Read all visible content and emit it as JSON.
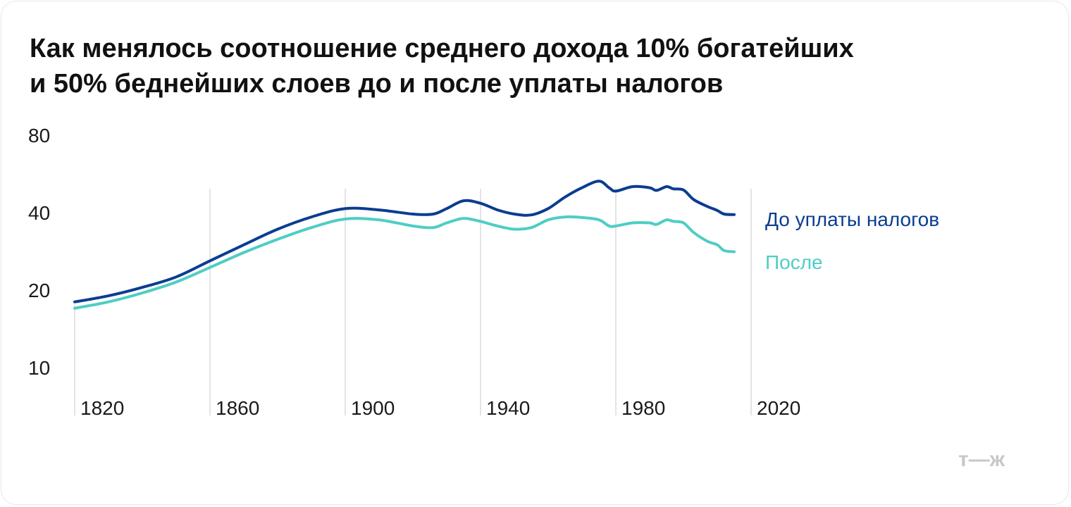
{
  "title_lines": [
    "Как менялось соотношение среднего дохода 10% богатейших",
    "и 50% беднейших слоев до и после уплаты налогов"
  ],
  "logo_text": "т—ж",
  "colors": {
    "before": "#0a3d91",
    "after": "#4fcdc4",
    "grid": "#dcdcdc",
    "text": "#1a1a1a"
  },
  "chart_data": {
    "type": "line",
    "title": "Как менялось соотношение среднего дохода 10% богатейших и 50% беднейших слоев до и после уплаты налогов",
    "xlabel": "",
    "ylabel": "",
    "x_ticks": [
      "1820",
      "1860",
      "1900",
      "1940",
      "1980",
      "2020"
    ],
    "y_ticks": [
      "10",
      "20",
      "40",
      "80"
    ],
    "y_scale": "log",
    "xlim": [
      1820,
      2020
    ],
    "ylim": [
      10,
      80
    ],
    "grid": "vertical",
    "series": [
      {
        "name": "До уплаты налогов",
        "points": [
          [
            1820,
            18
          ],
          [
            1830,
            19
          ],
          [
            1840,
            20.5
          ],
          [
            1850,
            22.5
          ],
          [
            1860,
            26
          ],
          [
            1870,
            30
          ],
          [
            1880,
            34.5
          ],
          [
            1890,
            38.5
          ],
          [
            1900,
            41.5
          ],
          [
            1910,
            41
          ],
          [
            1920,
            39.5
          ],
          [
            1926,
            39.5
          ],
          [
            1930,
            41.5
          ],
          [
            1935,
            44.5
          ],
          [
            1940,
            43.5
          ],
          [
            1945,
            41
          ],
          [
            1950,
            39.5
          ],
          [
            1955,
            39.2
          ],
          [
            1960,
            41.5
          ],
          [
            1965,
            46
          ],
          [
            1970,
            50
          ],
          [
            1975,
            53
          ],
          [
            1978,
            50
          ],
          [
            1980,
            48.5
          ],
          [
            1985,
            50.5
          ],
          [
            1990,
            50
          ],
          [
            1992,
            48.8
          ],
          [
            1995,
            50.5
          ],
          [
            1997,
            49.5
          ],
          [
            2000,
            49
          ],
          [
            2003,
            45
          ],
          [
            2007,
            42.3
          ],
          [
            2010,
            40.8
          ],
          [
            2012,
            39.5
          ],
          [
            2015,
            39.3
          ]
        ]
      },
      {
        "name": "После",
        "points": [
          [
            1820,
            17
          ],
          [
            1830,
            18
          ],
          [
            1840,
            19.5
          ],
          [
            1850,
            21.5
          ],
          [
            1860,
            24.5
          ],
          [
            1870,
            28
          ],
          [
            1880,
            31.5
          ],
          [
            1890,
            35
          ],
          [
            1900,
            37.8
          ],
          [
            1910,
            37.5
          ],
          [
            1920,
            35.5
          ],
          [
            1926,
            35
          ],
          [
            1930,
            36.5
          ],
          [
            1935,
            38
          ],
          [
            1940,
            37
          ],
          [
            1945,
            35.5
          ],
          [
            1950,
            34.5
          ],
          [
            1955,
            35
          ],
          [
            1960,
            37.5
          ],
          [
            1965,
            38.5
          ],
          [
            1970,
            38.3
          ],
          [
            1975,
            37.5
          ],
          [
            1978,
            35.5
          ],
          [
            1980,
            35.5
          ],
          [
            1985,
            36.5
          ],
          [
            1990,
            36.5
          ],
          [
            1992,
            36
          ],
          [
            1995,
            37.5
          ],
          [
            1997,
            37
          ],
          [
            2000,
            36.5
          ],
          [
            2003,
            33.5
          ],
          [
            2007,
            31
          ],
          [
            2010,
            30
          ],
          [
            2012,
            28.5
          ],
          [
            2015,
            28.2
          ]
        ]
      }
    ]
  }
}
